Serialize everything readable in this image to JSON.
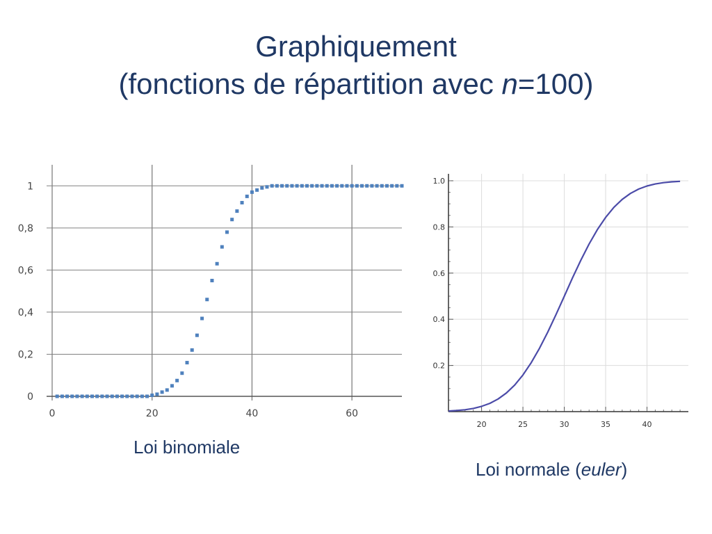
{
  "slide": {
    "title_line1": "Graphiquement",
    "title_line2_prefix": "(fonctions de répartition avec ",
    "title_line2_var": "n",
    "title_line2_suffix": "=100)"
  },
  "captions": {
    "left": "Loi binomiale",
    "right_prefix": "Loi normale (",
    "right_italic": "euler",
    "right_suffix": ")"
  },
  "colors": {
    "title": "#1f3864",
    "binomial_points": "#4f81bd",
    "normal_curve": "#4b4ba8",
    "grid": "#808080"
  },
  "chart_data": [
    {
      "type": "scatter",
      "name": "binomial",
      "series": [
        {
          "x": [
            1,
            2,
            3,
            4,
            5,
            6,
            7,
            8,
            9,
            10,
            11,
            12,
            13,
            14,
            15,
            16,
            17,
            18,
            19,
            20,
            21,
            22,
            23,
            24,
            25,
            26,
            27,
            28,
            29,
            30,
            31,
            32,
            33,
            34,
            35,
            36,
            37,
            38,
            39,
            40,
            41,
            42,
            43,
            44,
            45,
            46,
            47,
            48,
            49,
            50,
            51,
            52,
            53,
            54,
            55,
            56,
            57,
            58,
            59,
            60,
            61,
            62,
            63,
            64,
            65,
            66,
            67,
            68,
            69,
            70
          ],
          "y": [
            0,
            0,
            0,
            0,
            0,
            0,
            0,
            0,
            0,
            0,
            0,
            0,
            0,
            0,
            0,
            0,
            0,
            0,
            0,
            0.005,
            0.01,
            0.02,
            0.03,
            0.05,
            0.075,
            0.11,
            0.16,
            0.22,
            0.29,
            0.37,
            0.46,
            0.55,
            0.63,
            0.71,
            0.78,
            0.84,
            0.88,
            0.92,
            0.95,
            0.97,
            0.98,
            0.99,
            0.995,
            1,
            1,
            1,
            1,
            1,
            1,
            1,
            1,
            1,
            1,
            1,
            1,
            1,
            1,
            1,
            1,
            1,
            1,
            1,
            1,
            1,
            1,
            1,
            1,
            1,
            1,
            1
          ]
        }
      ],
      "xlim": [
        0,
        70
      ],
      "ylim": [
        0,
        1.1
      ],
      "x_ticks": [
        0,
        20,
        40,
        60
      ],
      "x_tick_labels": [
        "0",
        "20",
        "40",
        "60"
      ],
      "y_ticks": [
        0,
        0.2,
        0.4,
        0.6,
        0.8,
        1
      ],
      "y_tick_labels": [
        "0",
        "0,2",
        "0,4",
        "0,6",
        "0,8",
        "1"
      ],
      "grid": true
    },
    {
      "type": "line",
      "name": "normal",
      "series": [
        {
          "x": [
            16,
            17,
            18,
            19,
            20,
            21,
            22,
            23,
            24,
            25,
            26,
            27,
            28,
            29,
            30,
            31,
            32,
            33,
            34,
            35,
            36,
            37,
            38,
            39,
            40,
            41,
            42,
            43,
            44
          ],
          "y": [
            0.0026,
            0.0047,
            0.0082,
            0.0139,
            0.0228,
            0.0359,
            0.0548,
            0.0808,
            0.1151,
            0.1587,
            0.2119,
            0.2743,
            0.3446,
            0.4207,
            0.5,
            0.5793,
            0.6554,
            0.7257,
            0.7881,
            0.8413,
            0.8849,
            0.9192,
            0.9452,
            0.9641,
            0.9772,
            0.9861,
            0.9918,
            0.9953,
            0.9974
          ]
        }
      ],
      "xlim": [
        16,
        45
      ],
      "ylim": [
        0,
        1.03
      ],
      "x_ticks": [
        20,
        25,
        30,
        35,
        40
      ],
      "x_tick_labels": [
        "20",
        "25",
        "30",
        "35",
        "40"
      ],
      "y_ticks": [
        0.2,
        0.4,
        0.6,
        0.8,
        1.0
      ],
      "y_tick_labels": [
        "0.2",
        "0.4",
        "0.6",
        "0.8",
        "1.0"
      ],
      "grid": true
    }
  ]
}
